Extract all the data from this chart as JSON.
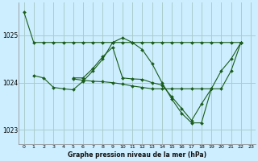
{
  "title": "Graphe pression niveau de la mer (hPa)",
  "bg_color": "#cceeff",
  "grid_color": "#aacccc",
  "line_color": "#1a5c1a",
  "xlim": [
    -0.5,
    23.5
  ],
  "ylim": [
    1022.7,
    1025.7
  ],
  "yticks": [
    1023,
    1024,
    1025
  ],
  "xticks": [
    0,
    1,
    2,
    3,
    4,
    5,
    6,
    7,
    8,
    9,
    10,
    11,
    12,
    13,
    14,
    15,
    16,
    17,
    18,
    19,
    20,
    21,
    22,
    23
  ],
  "series0_x": [
    0,
    1,
    2,
    3,
    4,
    5,
    6,
    7,
    8,
    9,
    10,
    11,
    12,
    13,
    14,
    15,
    16,
    17,
    18,
    19,
    20,
    21,
    22
  ],
  "series0_y": [
    1025.5,
    1024.85,
    1024.85,
    1024.85,
    1024.85,
    1024.85,
    1024.85,
    1024.85,
    1024.85,
    1024.85,
    1024.85,
    1024.85,
    1024.85,
    1024.85,
    1024.85,
    1024.85,
    1024.85,
    1024.85,
    1024.85,
    1024.85,
    1024.85,
    1024.85,
    1024.85
  ],
  "series1_x": [
    1,
    2,
    3,
    4,
    5,
    6,
    7,
    8,
    9,
    10,
    11,
    12,
    13,
    14,
    15,
    16,
    17,
    18,
    19,
    20,
    21,
    22
  ],
  "series1_y": [
    1024.15,
    1024.1,
    1023.9,
    1023.87,
    1023.85,
    1024.03,
    1024.25,
    1024.5,
    1024.85,
    1024.95,
    1024.85,
    1024.7,
    1024.4,
    1024.0,
    1023.65,
    1023.35,
    1023.15,
    1023.15,
    1023.87,
    1024.25,
    1024.5,
    1024.85
  ],
  "series2_x": [
    5,
    6,
    7,
    8,
    9,
    10,
    11,
    12,
    13,
    14,
    15,
    16,
    17,
    18,
    19
  ],
  "series2_y": [
    1024.08,
    1024.05,
    1024.03,
    1024.02,
    1024.0,
    1023.97,
    1023.93,
    1023.9,
    1023.87,
    1023.87,
    1023.87,
    1023.87,
    1023.87,
    1023.87,
    1023.87
  ],
  "series3_x": [
    5,
    6,
    7,
    8,
    9,
    10,
    11,
    12,
    13,
    14,
    15,
    16,
    17,
    18,
    19,
    20,
    21,
    22
  ],
  "series3_y": [
    1024.1,
    1024.1,
    1024.3,
    1024.55,
    1024.75,
    1024.1,
    1024.08,
    1024.07,
    1024.0,
    1023.95,
    1023.7,
    1023.45,
    1023.2,
    1023.55,
    1023.87,
    1023.87,
    1024.25,
    1024.85
  ]
}
